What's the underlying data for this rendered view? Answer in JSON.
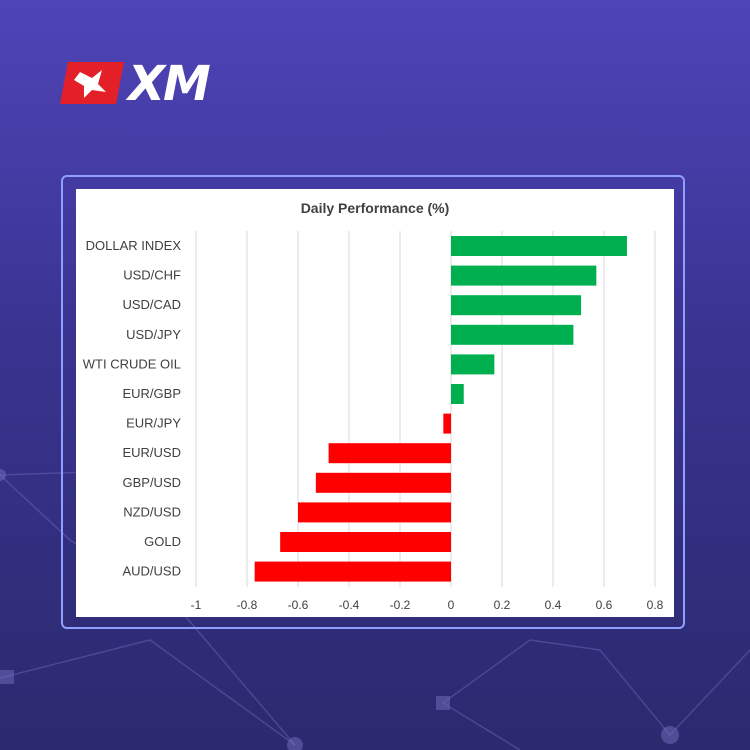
{
  "brand": {
    "logo_text": "XM",
    "accent": "#e32027"
  },
  "chart_data": {
    "type": "bar",
    "orientation": "horizontal",
    "title": "Daily Performance (%)",
    "categories": [
      "DOLLAR INDEX",
      "USD/CHF",
      "USD/CAD",
      "USD/JPY",
      "WTI CRUDE OIL",
      "EUR/GBP",
      "EUR/JPY",
      "EUR/USD",
      "GBP/USD",
      "NZD/USD",
      "GOLD",
      "AUD/USD"
    ],
    "values": [
      0.69,
      0.57,
      0.51,
      0.48,
      0.17,
      0.05,
      -0.03,
      -0.48,
      -0.53,
      -0.6,
      -0.67,
      -0.77
    ],
    "xlim": [
      -1,
      0.8
    ],
    "xticks": [
      -1,
      -0.8,
      -0.6,
      -0.4,
      -0.2,
      0,
      0.2,
      0.4,
      0.6,
      0.8
    ],
    "xtick_labels": [
      "-1",
      "-0.8",
      "-0.6",
      "-0.4",
      "-0.2",
      "0",
      "0.2",
      "0.4",
      "0.6",
      "0.8"
    ],
    "grid": true,
    "colors": {
      "positive": "#00b050",
      "negative": "#ff0000",
      "grid": "#d9d9d9",
      "text": "#404040"
    }
  }
}
